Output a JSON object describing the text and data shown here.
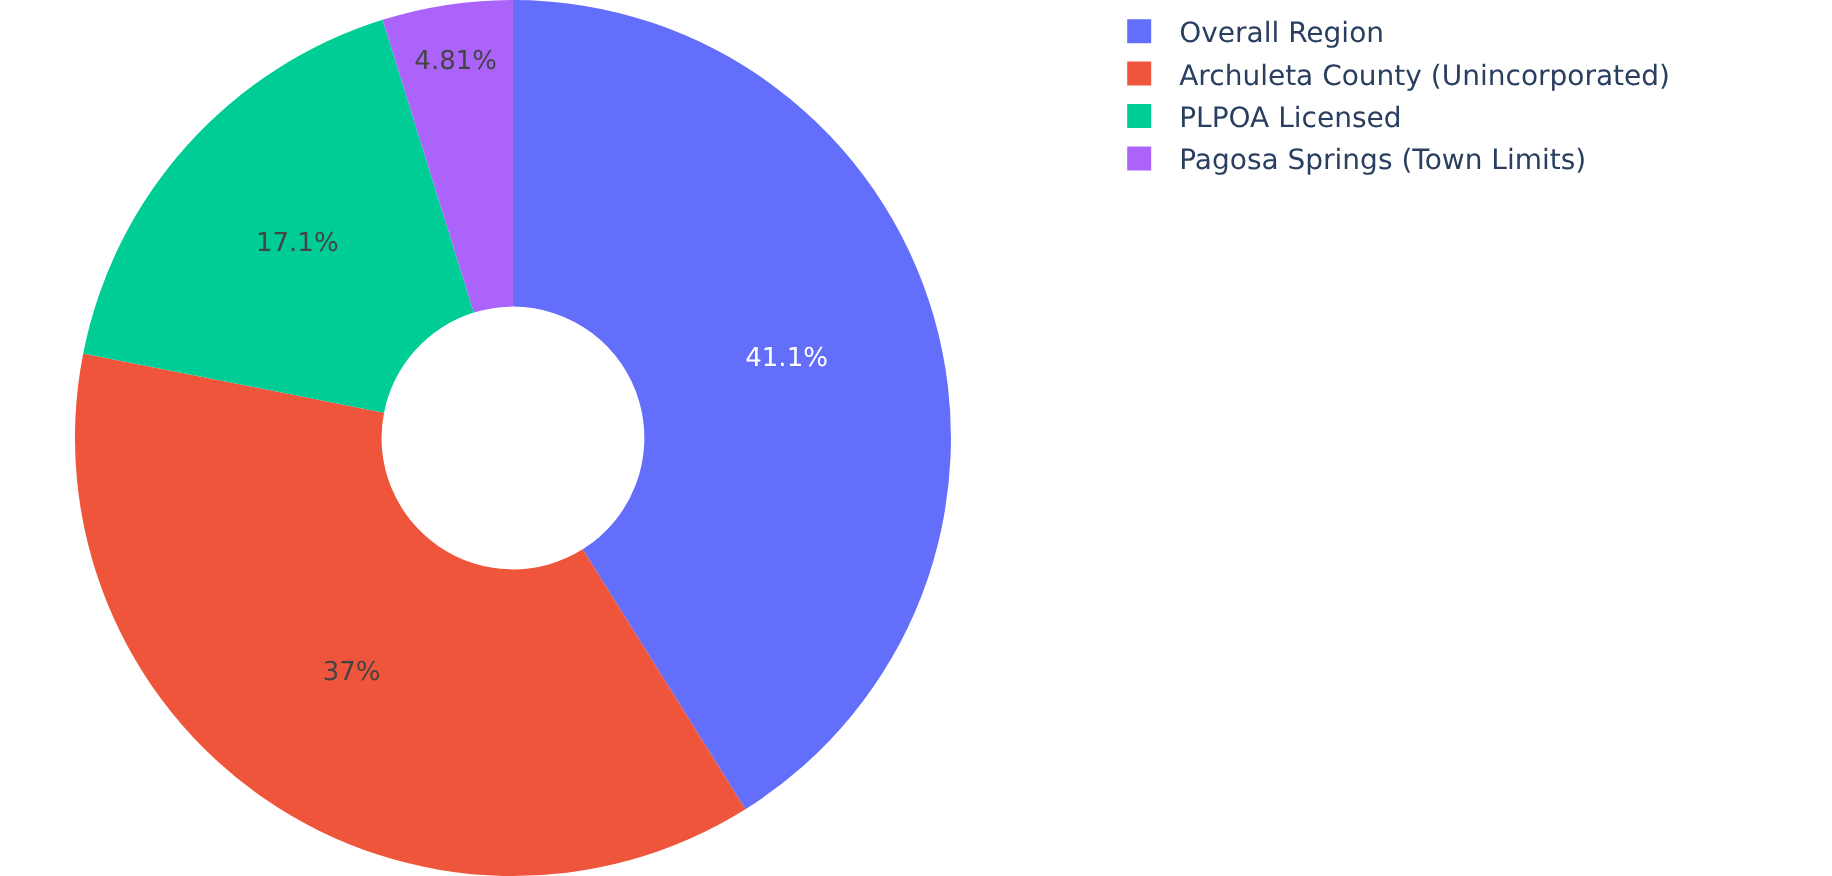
{
  "chart_data": {
    "type": "donut",
    "categories": [
      "Overall Region",
      "Archuleta County (Unincorporated)",
      "PLPOA Licensed",
      "Pagosa Springs (Town Limits)"
    ],
    "values": [
      41.1,
      37,
      17.1,
      4.81
    ],
    "colors": [
      "#636efa",
      "#ef553b",
      "#00cc96",
      "#ab63fa"
    ],
    "value_labels": [
      "41.1%",
      "37%",
      "17.1%",
      "4.81%"
    ],
    "legend": "top right"
  }
}
